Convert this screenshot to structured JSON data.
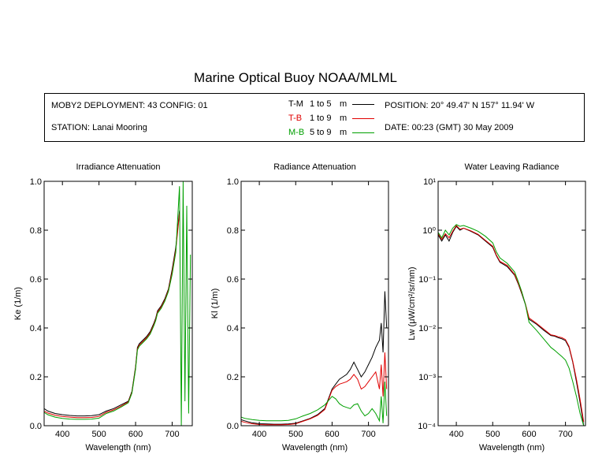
{
  "title": "Marine Optical Buoy NOAA/MLML",
  "info": {
    "deployment": "MOBY2 DEPLOYMENT: 43 CONFIG: 01",
    "station": "STATION: Lanai Mooring",
    "position": "POSITION: 20° 49.47' N   157° 11.94' W",
    "date": "DATE: 00:23 (GMT) 30 May 2009"
  },
  "legend": [
    {
      "code": "T-M",
      "range": "1 to 5",
      "unit": "m",
      "color": "#000000"
    },
    {
      "code": "T-B",
      "range": "1 to 9",
      "unit": "m",
      "color": "#e00000"
    },
    {
      "code": "M-B",
      "range": "5 to 9",
      "unit": "m",
      "color": "#00a000"
    }
  ],
  "chart_data": [
    {
      "type": "line",
      "title": "Irradiance Attenuation",
      "xlabel": "Wavelength (nm)",
      "ylabel": "Ke  (1/m)",
      "xlim": [
        350,
        755
      ],
      "ylim": [
        0,
        1.0
      ],
      "xticks": [
        400,
        500,
        600,
        700
      ],
      "yticks": [
        0.0,
        0.2,
        0.4,
        0.6,
        0.8,
        1.0
      ],
      "ytick_labels": [
        "0.0",
        "0.2",
        "0.4",
        "0.6",
        "0.8",
        "1.0"
      ],
      "series": [
        {
          "name": "T-M",
          "color": "#000000",
          "x": [
            350,
            360,
            380,
            400,
            420,
            440,
            460,
            480,
            500,
            520,
            540,
            560,
            580,
            590,
            600,
            605,
            610,
            620,
            630,
            640,
            650,
            655,
            660,
            670,
            680,
            690,
            700,
            710,
            720
          ],
          "y": [
            0.07,
            0.06,
            0.05,
            0.045,
            0.042,
            0.04,
            0.04,
            0.041,
            0.045,
            0.06,
            0.07,
            0.085,
            0.1,
            0.14,
            0.24,
            0.32,
            0.335,
            0.35,
            0.365,
            0.385,
            0.42,
            0.44,
            0.47,
            0.49,
            0.52,
            0.56,
            0.64,
            0.73,
            0.88
          ]
        },
        {
          "name": "T-B",
          "color": "#e00000",
          "x": [
            350,
            360,
            380,
            400,
            420,
            440,
            460,
            480,
            500,
            520,
            540,
            560,
            580,
            590,
            600,
            605,
            610,
            620,
            630,
            640,
            650,
            655,
            660,
            670,
            680,
            690,
            700,
            710,
            720
          ],
          "y": [
            0.06,
            0.052,
            0.043,
            0.038,
            0.035,
            0.033,
            0.033,
            0.034,
            0.038,
            0.055,
            0.065,
            0.08,
            0.097,
            0.136,
            0.235,
            0.315,
            0.33,
            0.345,
            0.36,
            0.38,
            0.415,
            0.435,
            0.465,
            0.485,
            0.515,
            0.555,
            0.63,
            0.72,
            0.87
          ]
        },
        {
          "name": "M-B",
          "color": "#00a000",
          "x": [
            350,
            360,
            380,
            400,
            420,
            440,
            460,
            480,
            500,
            520,
            540,
            560,
            580,
            590,
            600,
            605,
            610,
            620,
            630,
            640,
            650,
            655,
            660,
            670,
            680,
            690,
            700,
            710,
            720,
            725,
            730,
            735,
            740,
            745,
            750
          ],
          "y": [
            0.055,
            0.045,
            0.035,
            0.03,
            0.027,
            0.026,
            0.026,
            0.027,
            0.031,
            0.05,
            0.06,
            0.076,
            0.094,
            0.133,
            0.23,
            0.31,
            0.325,
            0.34,
            0.355,
            0.375,
            0.41,
            0.43,
            0.46,
            0.48,
            0.51,
            0.55,
            0.62,
            0.71,
            0.98,
            0.0,
            1.0,
            0.1,
            0.9,
            0.05,
            0.7
          ]
        }
      ]
    },
    {
      "type": "line",
      "title": "Radiance Attenuation",
      "xlabel": "Wavelength (nm)",
      "ylabel": "Kl  (1/m)",
      "xlim": [
        350,
        755
      ],
      "ylim": [
        0,
        1.0
      ],
      "xticks": [
        400,
        500,
        600,
        700
      ],
      "yticks": [
        0.0,
        0.2,
        0.4,
        0.6,
        0.8,
        1.0
      ],
      "ytick_labels": [
        "0.0",
        "0.2",
        "0.4",
        "0.6",
        "0.8",
        "1.0"
      ],
      "series": [
        {
          "name": "T-M",
          "color": "#000000",
          "x": [
            350,
            360,
            380,
            400,
            420,
            440,
            460,
            480,
            500,
            520,
            540,
            560,
            580,
            600,
            610,
            620,
            630,
            640,
            650,
            660,
            670,
            680,
            690,
            700,
            710,
            720,
            730,
            735,
            740,
            745,
            750
          ],
          "y": [
            0.025,
            0.02,
            0.012,
            0.008,
            0.007,
            0.006,
            0.006,
            0.007,
            0.01,
            0.02,
            0.03,
            0.045,
            0.07,
            0.15,
            0.17,
            0.19,
            0.2,
            0.21,
            0.23,
            0.26,
            0.23,
            0.2,
            0.22,
            0.25,
            0.28,
            0.32,
            0.35,
            0.42,
            0.3,
            0.55,
            0.4
          ]
        },
        {
          "name": "T-B",
          "color": "#e00000",
          "x": [
            350,
            360,
            380,
            400,
            420,
            440,
            460,
            480,
            500,
            520,
            540,
            560,
            580,
            600,
            610,
            620,
            630,
            640,
            650,
            660,
            670,
            680,
            690,
            700,
            710,
            720,
            730,
            735,
            740,
            745,
            750
          ],
          "y": [
            0.018,
            0.014,
            0.008,
            0.005,
            0.004,
            0.004,
            0.004,
            0.005,
            0.008,
            0.018,
            0.028,
            0.042,
            0.066,
            0.145,
            0.16,
            0.17,
            0.175,
            0.18,
            0.19,
            0.21,
            0.19,
            0.15,
            0.16,
            0.18,
            0.2,
            0.22,
            0.15,
            0.25,
            0.12,
            0.3,
            0.15
          ]
        },
        {
          "name": "M-B",
          "color": "#00a000",
          "x": [
            350,
            360,
            380,
            400,
            420,
            440,
            460,
            480,
            500,
            520,
            540,
            560,
            580,
            600,
            610,
            620,
            630,
            640,
            650,
            660,
            670,
            680,
            690,
            700,
            710,
            720,
            730,
            735,
            740,
            745,
            750
          ],
          "y": [
            0.035,
            0.03,
            0.025,
            0.022,
            0.02,
            0.02,
            0.02,
            0.022,
            0.028,
            0.04,
            0.05,
            0.065,
            0.085,
            0.12,
            0.11,
            0.09,
            0.08,
            0.075,
            0.07,
            0.085,
            0.09,
            0.06,
            0.04,
            0.05,
            0.07,
            0.05,
            0.02,
            0.12,
            0.01,
            0.18,
            0.04
          ]
        }
      ]
    },
    {
      "type": "line",
      "title": "Water Leaving Radiance",
      "xlabel": "Wavelength (nm)",
      "ylabel": "Lw  (μW/cm²/sr/nm)",
      "xlim": [
        350,
        755
      ],
      "ylim": [
        0.0001,
        10
      ],
      "yscale": "log",
      "xticks": [
        400,
        500,
        600,
        700
      ],
      "yticks": [
        0.0001,
        0.001,
        0.01,
        0.1,
        1,
        10
      ],
      "ytick_labels": [
        "10⁻⁴",
        "10⁻³",
        "10⁻²",
        "10⁻¹",
        "10⁰",
        "10¹"
      ],
      "series": [
        {
          "name": "T-M",
          "color": "#000000",
          "x": [
            350,
            360,
            370,
            380,
            390,
            400,
            410,
            420,
            440,
            460,
            480,
            500,
            510,
            520,
            540,
            560,
            570,
            580,
            590,
            600,
            620,
            640,
            660,
            670,
            680,
            690,
            700,
            710,
            720,
            730,
            740,
            750
          ],
          "y": [
            0.8,
            0.6,
            0.8,
            0.6,
            0.9,
            1.2,
            1.0,
            1.1,
            0.95,
            0.8,
            0.6,
            0.45,
            0.3,
            0.22,
            0.18,
            0.12,
            0.08,
            0.05,
            0.03,
            0.015,
            0.012,
            0.009,
            0.007,
            0.0068,
            0.0063,
            0.006,
            0.0055,
            0.004,
            0.002,
            0.0008,
            0.0003,
            0.0001
          ]
        },
        {
          "name": "T-B",
          "color": "#e00000",
          "x": [
            350,
            360,
            370,
            380,
            390,
            400,
            410,
            420,
            440,
            460,
            480,
            500,
            510,
            520,
            540,
            560,
            570,
            580,
            590,
            600,
            620,
            640,
            660,
            670,
            680,
            690,
            700,
            710,
            720,
            730,
            740,
            750
          ],
          "y": [
            0.85,
            0.65,
            0.85,
            0.7,
            0.95,
            1.25,
            1.05,
            1.1,
            0.97,
            0.82,
            0.62,
            0.47,
            0.31,
            0.23,
            0.19,
            0.125,
            0.083,
            0.052,
            0.031,
            0.016,
            0.0125,
            0.0095,
            0.0072,
            0.007,
            0.0066,
            0.0063,
            0.0058,
            0.0042,
            0.0021,
            0.0009,
            0.00035,
            0.00012
          ]
        },
        {
          "name": "M-B",
          "color": "#00a000",
          "x": [
            350,
            360,
            370,
            380,
            390,
            400,
            410,
            420,
            440,
            460,
            480,
            500,
            510,
            520,
            540,
            560,
            570,
            580,
            590,
            600,
            620,
            640,
            660,
            670,
            680,
            690,
            700,
            710,
            720,
            730,
            740,
            750
          ],
          "y": [
            0.9,
            0.7,
            1.0,
            0.8,
            1.1,
            1.3,
            1.2,
            1.25,
            1.1,
            0.95,
            0.75,
            0.55,
            0.36,
            0.27,
            0.21,
            0.14,
            0.09,
            0.055,
            0.03,
            0.013,
            0.009,
            0.006,
            0.004,
            0.0035,
            0.003,
            0.0026,
            0.0022,
            0.0015,
            0.0008,
            0.0004,
            0.00018,
            0.0001
          ]
        }
      ]
    }
  ]
}
